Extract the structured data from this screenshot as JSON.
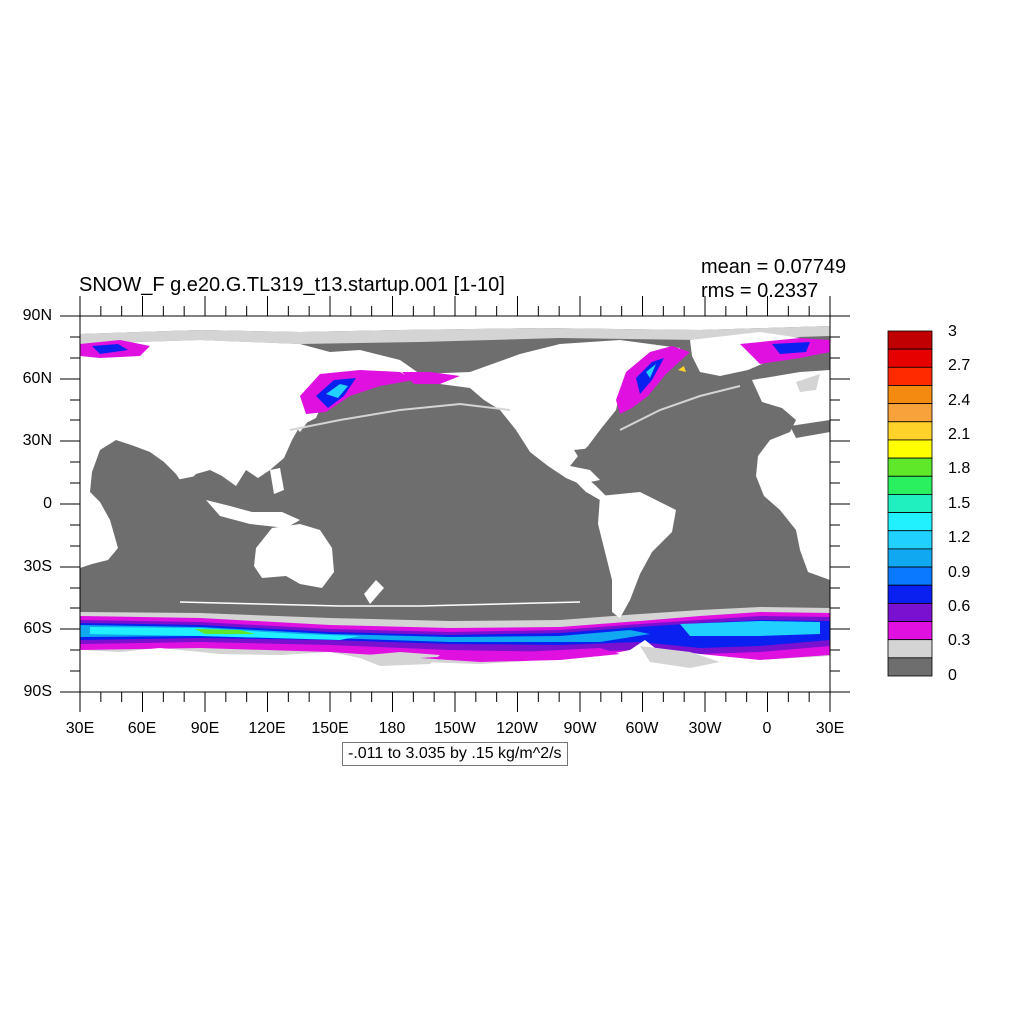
{
  "title": "SNOW_F g.e20.G.TL319_t13.startup.001 [1-10]",
  "stats": {
    "mean": "mean = 0.07749",
    "rms": "rms = 0.2337"
  },
  "lat_labels": [
    "90N",
    "60N",
    "30N",
    "0",
    "30S",
    "60S",
    "90S"
  ],
  "lon_labels": [
    "30E",
    "60E",
    "90E",
    "120E",
    "150E",
    "180",
    "150W",
    "120W",
    "90W",
    "60W",
    "30W",
    "0",
    "30E"
  ],
  "contour_info": "-.011 to 3.035 by .15 kg/m^2/s",
  "colorbar": {
    "labels": [
      "3",
      "2.7",
      "2.4",
      "2.1",
      "1.8",
      "1.5",
      "1.2",
      "0.9",
      "0.6",
      "0.3",
      "0"
    ],
    "colors": [
      "#c00000",
      "#e60000",
      "#ff2a00",
      "#f58a10",
      "#f7a23a",
      "#ffd22a",
      "#ffff00",
      "#5fe82a",
      "#2af060",
      "#20f0c0",
      "#20f0ff",
      "#20d0ff",
      "#10a8f0",
      "#0a78ff",
      "#0a20f0",
      "#7a10d0",
      "#e010e0",
      "#d4d4d4",
      "#6e6e6e"
    ]
  },
  "palette": {
    "ocean": "#6e6e6e",
    "land": "#ffffff",
    "ice_edge": "#d4d4d4",
    "magenta": "#e010e0",
    "purple": "#7a10d0",
    "blue": "#0a20f0",
    "cyan": "#20f0ff",
    "teal": "#20d0ff"
  }
}
